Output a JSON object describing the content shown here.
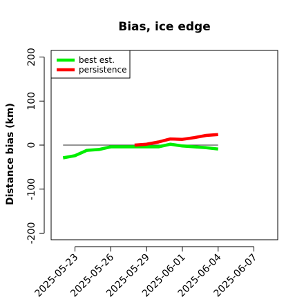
{
  "chart_data": {
    "type": "line",
    "title": "Bias, ice edge",
    "ylabel": "Distance bias (km)",
    "xlabel": "",
    "ylim": [
      -215,
      215
    ],
    "xlim": [
      "2025-05-21",
      "2025-06-09"
    ],
    "yticks": [
      -200,
      -100,
      0,
      100,
      200
    ],
    "xticks": [
      "2025-05-23",
      "2025-05-26",
      "2025-05-29",
      "2025-06-01",
      "2025-06-04",
      "2025-06-07"
    ],
    "reference_line": {
      "y": 0,
      "x_start": "2025-05-22",
      "x_end": "2025-06-04",
      "color": "#555555"
    },
    "legend_position": "top-left",
    "series": [
      {
        "name": "best est.",
        "color": "#00ee00",
        "x": [
          "2025-05-22",
          "2025-05-23",
          "2025-05-24",
          "2025-05-25",
          "2025-05-26",
          "2025-05-27",
          "2025-05-28",
          "2025-05-29",
          "2025-05-30",
          "2025-05-31",
          "2025-06-01",
          "2025-06-02",
          "2025-06-03",
          "2025-06-04"
        ],
        "y": [
          -29,
          -24,
          -12,
          -10,
          -4,
          -4,
          -4,
          -4,
          -4,
          2,
          -2,
          -4,
          -6,
          -9
        ]
      },
      {
        "name": "persistence",
        "color": "#ff0000",
        "x": [
          "2025-05-28",
          "2025-05-29",
          "2025-05-30",
          "2025-05-31",
          "2025-06-01",
          "2025-06-02",
          "2025-06-03",
          "2025-06-04"
        ],
        "y": [
          0,
          2,
          7,
          14,
          13,
          17,
          22,
          24
        ]
      }
    ]
  }
}
